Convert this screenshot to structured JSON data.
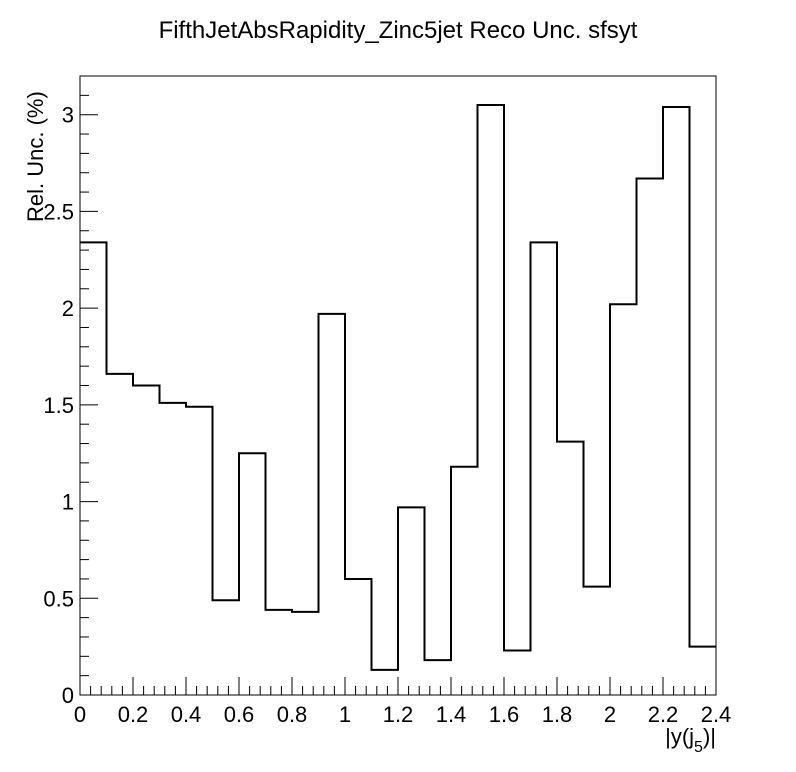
{
  "chart_data": {
    "type": "histogram",
    "title": "FifthJetAbsRapidity_Zinc5jet Reco Unc. sfsyt",
    "xlabel": "|y(j_5)|",
    "xlabel_parts": {
      "pre": "|y(j",
      "sub": "5",
      "post": ")|"
    },
    "ylabel": "Rel. Unc. (%)",
    "xlim": [
      0,
      2.4
    ],
    "ylim": [
      0,
      3.2
    ],
    "grid": false,
    "legend": "none",
    "bin_edges": [
      0,
      0.1,
      0.2,
      0.3,
      0.4,
      0.5,
      0.6,
      0.7,
      0.8,
      0.9,
      1.0,
      1.1,
      1.2,
      1.3,
      1.4,
      1.5,
      1.6,
      1.7,
      1.8,
      1.9,
      2.0,
      2.1,
      2.2,
      2.3,
      2.4
    ],
    "values": [
      2.34,
      1.66,
      1.6,
      1.51,
      1.49,
      0.49,
      1.25,
      0.44,
      0.43,
      1.97,
      0.6,
      0.13,
      0.97,
      0.18,
      1.18,
      3.05,
      0.23,
      2.34,
      1.31,
      0.56,
      2.02,
      2.67,
      3.04,
      0.25
    ],
    "x_ticks": [
      "0",
      "0.2",
      "0.4",
      "0.6",
      "0.8",
      "1",
      "1.2",
      "1.4",
      "1.6",
      "1.8",
      "2",
      "2.2",
      "2.4"
    ],
    "y_ticks": [
      "0",
      "0.5",
      "1",
      "1.5",
      "2",
      "2.5",
      "3"
    ],
    "line_color": "#000000"
  }
}
